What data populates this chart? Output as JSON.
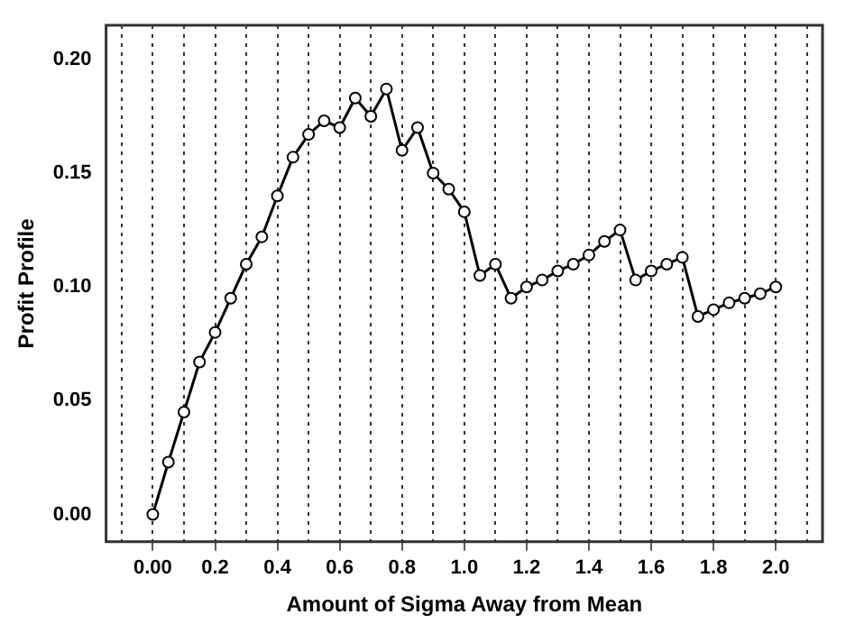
{
  "chart_data": {
    "type": "line",
    "xlabel": "Amount of Sigma Away from Mean",
    "ylabel": "Profit Profile",
    "x": [
      0,
      0.05,
      0.1,
      0.15,
      0.2,
      0.25,
      0.3,
      0.35,
      0.4,
      0.45,
      0.5,
      0.55,
      0.6,
      0.65,
      0.7,
      0.75,
      0.8,
      0.85,
      0.9,
      0.95,
      1.0,
      1.05,
      1.1,
      1.15,
      1.2,
      1.25,
      1.3,
      1.35,
      1.4,
      1.45,
      1.5,
      1.55,
      1.6,
      1.65,
      1.7,
      1.75,
      1.8,
      1.85,
      1.9,
      1.95,
      2.0
    ],
    "series": [
      {
        "color": "#000000",
        "values": [
          0.0,
          0.023,
          0.045,
          0.067,
          0.08,
          0.095,
          0.11,
          0.122,
          0.14,
          0.157,
          0.167,
          0.173,
          0.17,
          0.183,
          0.175,
          0.187,
          0.16,
          0.17,
          0.15,
          0.143,
          0.133,
          0.105,
          0.11,
          0.095,
          0.1,
          0.103,
          0.107,
          0.11,
          0.114,
          0.12,
          0.125,
          0.103,
          0.107,
          0.11,
          0.113,
          0.087,
          0.09,
          0.093,
          0.095,
          0.097,
          0.1
        ]
      }
    ],
    "xlim": [
      -0.15,
      2.15
    ],
    "xticks": [
      {
        "value": -0.1,
        "label": null
      },
      {
        "value": 0,
        "label": "0.00"
      },
      {
        "value": 0.1,
        "label": null
      },
      0.2,
      {
        "value": 0.3,
        "label": null
      },
      0.4,
      {
        "value": 0.5,
        "label": null
      },
      0.6,
      {
        "value": 0.7,
        "label": null
      },
      0.8,
      {
        "value": 0.9,
        "label": null
      },
      {
        "value": 1,
        "label": "1.0"
      },
      {
        "value": 1.1,
        "label": null
      },
      1.2,
      {
        "value": 1.3,
        "label": null
      },
      1.4,
      {
        "value": 1.5,
        "label": null
      },
      1.6,
      {
        "value": 1.7,
        "label": null
      },
      1.8,
      {
        "value": 1.9,
        "label": null
      },
      {
        "value": 2,
        "label": "2.0"
      },
      {
        "value": 2.1,
        "label": null
      }
    ],
    "ylim": [
      -0.012,
      0.215
    ],
    "yticks": [
      {
        "value": 0,
        "label": "0.00"
      },
      {
        "value": 0.05,
        "label": "0.05"
      },
      {
        "value": 0.1,
        "label": "0.10"
      },
      {
        "value": 0.15,
        "label": "0.15"
      },
      {
        "value": 0.2,
        "label": "0.20"
      }
    ],
    "grid": "x",
    "marker": "circle",
    "line_style": "solid",
    "legend": false
  }
}
